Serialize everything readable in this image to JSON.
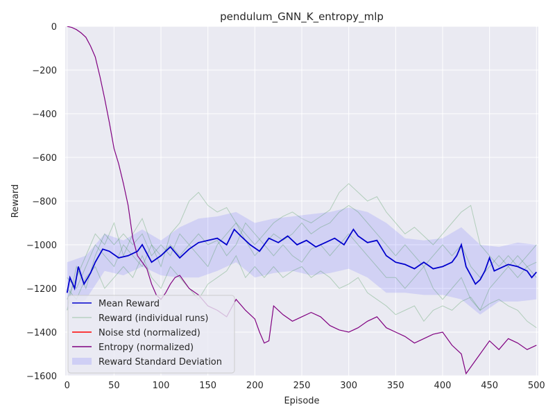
{
  "chart_data": {
    "type": "line",
    "title": "pendulum_GNN_K_entropy_mlp",
    "xlabel": "Episode",
    "ylabel": "Reward",
    "xlim": [
      -2,
      502
    ],
    "ylim": [
      -1600,
      0
    ],
    "x_ticks": [
      0,
      50,
      100,
      150,
      200,
      250,
      300,
      350,
      400,
      450,
      500
    ],
    "y_ticks": [
      0,
      -200,
      -400,
      -600,
      -800,
      -1000,
      -1200,
      -1400,
      -1600
    ],
    "x_tick_labels": [
      "0",
      "50",
      "100",
      "150",
      "200",
      "250",
      "300",
      "350",
      "400",
      "450",
      "500"
    ],
    "y_tick_labels": [
      "0",
      "−200",
      "−400",
      "−600",
      "−800",
      "−1000",
      "−1200",
      "−1400",
      "−1600"
    ],
    "grid": true,
    "legend_position": "lower-left",
    "colors": {
      "mean": "#0000cc",
      "runs": "#2e8b3c",
      "noise": "#ff0000",
      "entropy": "#800080",
      "std_band": "#6666ff",
      "background": "#eaeaf2"
    },
    "legend": [
      {
        "label": "Mean Reward",
        "kind": "line",
        "color": "#0000cc"
      },
      {
        "label": "Reward (individual runs)",
        "kind": "thin",
        "color": "#2e8b3c"
      },
      {
        "label": "Noise std (normalized)",
        "kind": "line",
        "color": "#ff0000"
      },
      {
        "label": "Entropy (normalized)",
        "kind": "line",
        "color": "#800080"
      },
      {
        "label": "Reward Standard Deviation",
        "kind": "patch",
        "color": "#6666ff"
      }
    ],
    "series": [
      {
        "name": "Mean Reward",
        "x": [
          0,
          3,
          8,
          12,
          18,
          25,
          30,
          38,
          45,
          55,
          65,
          75,
          80,
          90,
          100,
          110,
          120,
          130,
          140,
          150,
          160,
          170,
          178,
          185,
          195,
          205,
          215,
          225,
          235,
          245,
          255,
          265,
          275,
          285,
          295,
          305,
          310,
          320,
          330,
          340,
          350,
          360,
          370,
          380,
          390,
          400,
          410,
          415,
          420,
          425,
          430,
          435,
          440,
          445,
          450,
          455,
          460,
          470,
          480,
          490,
          495,
          500
        ],
        "y": [
          -1220,
          -1150,
          -1200,
          -1100,
          -1180,
          -1130,
          -1080,
          -1020,
          -1030,
          -1060,
          -1050,
          -1030,
          -1000,
          -1080,
          -1050,
          -1010,
          -1060,
          -1020,
          -990,
          -980,
          -970,
          -1000,
          -930,
          -960,
          -1000,
          -1030,
          -970,
          -990,
          -960,
          -1000,
          -980,
          -1010,
          -990,
          -970,
          -1000,
          -930,
          -960,
          -990,
          -980,
          -1050,
          -1080,
          -1090,
          -1110,
          -1080,
          -1110,
          -1100,
          -1080,
          -1050,
          -1000,
          -1100,
          -1140,
          -1180,
          -1160,
          -1120,
          -1060,
          -1120,
          -1110,
          -1090,
          -1100,
          -1120,
          -1150,
          -1125
        ]
      },
      {
        "name": "Entropy (normalized)",
        "x": [
          0,
          5,
          10,
          15,
          20,
          25,
          30,
          35,
          40,
          45,
          50,
          55,
          60,
          65,
          70,
          75,
          80,
          85,
          90,
          95,
          100,
          105,
          110,
          115,
          120,
          130,
          140,
          150,
          160,
          170,
          180,
          190,
          200,
          205,
          210,
          215,
          220,
          230,
          240,
          250,
          260,
          270,
          280,
          290,
          300,
          310,
          320,
          330,
          340,
          350,
          360,
          370,
          380,
          390,
          400,
          410,
          420,
          425,
          430,
          435,
          440,
          450,
          460,
          470,
          480,
          490,
          495,
          500
        ],
        "y": [
          0,
          -5,
          -15,
          -30,
          -50,
          -90,
          -140,
          -230,
          -330,
          -440,
          -560,
          -630,
          -720,
          -820,
          -970,
          -1050,
          -1080,
          -1110,
          -1180,
          -1230,
          -1250,
          -1220,
          -1180,
          -1150,
          -1140,
          -1200,
          -1230,
          -1280,
          -1300,
          -1330,
          -1250,
          -1300,
          -1340,
          -1400,
          -1450,
          -1440,
          -1280,
          -1320,
          -1350,
          -1330,
          -1310,
          -1330,
          -1370,
          -1390,
          -1400,
          -1380,
          -1350,
          -1330,
          -1380,
          -1400,
          -1420,
          -1450,
          -1430,
          -1410,
          -1400,
          -1460,
          -1500,
          -1590,
          -1560,
          -1530,
          -1500,
          -1440,
          -1480,
          -1430,
          -1450,
          -1480,
          -1470,
          -1460
        ]
      },
      {
        "name": "Reward (individual runs)",
        "runs": [
          {
            "x": [
              0,
              10,
              20,
              30,
              40,
              50,
              60,
              70,
              80,
              90,
              100,
              110,
              120,
              130,
              140,
              150,
              160,
              170,
              180,
              190,
              200,
              210,
              220,
              230,
              240,
              250,
              260,
              270,
              280,
              290,
              300,
              310,
              320,
              330,
              340,
              350,
              360,
              370,
              380,
              390,
              400,
              410,
              420,
              430,
              440,
              450,
              460,
              470,
              480,
              490,
              500
            ],
            "y": [
              -1250,
              -1150,
              -1050,
              -950,
              -1000,
              -900,
              -1050,
              -950,
              -880,
              -1000,
              -1100,
              -950,
              -900,
              -800,
              -760,
              -820,
              -850,
              -830,
              -900,
              -950,
              -1000,
              -950,
              -900,
              -870,
              -850,
              -880,
              -900,
              -870,
              -840,
              -760,
              -720,
              -760,
              -800,
              -780,
              -850,
              -900,
              -950,
              -920,
              -960,
              -1000,
              -950,
              -900,
              -850,
              -820,
              -1000,
              -1050,
              -1100,
              -1050,
              -1100,
              -1050,
              -1000
            ]
          },
          {
            "x": [
              0,
              10,
              20,
              30,
              40,
              50,
              60,
              70,
              80,
              90,
              100,
              110,
              120,
              130,
              140,
              150,
              160,
              170,
              180,
              190,
              200,
              210,
              220,
              230,
              240,
              250,
              260,
              270,
              280,
              290,
              300,
              310,
              320,
              330,
              340,
              350,
              360,
              370,
              380,
              390,
              400,
              410,
              420,
              430,
              440,
              450,
              460,
              470,
              480,
              490,
              500
            ],
            "y": [
              -1200,
              -1250,
              -1150,
              -1100,
              -1200,
              -1150,
              -1100,
              -1150,
              -1050,
              -1150,
              -1200,
              -1100,
              -1150,
              -1200,
              -1250,
              -1180,
              -1150,
              -1120,
              -1050,
              -1150,
              -1100,
              -1150,
              -1100,
              -1150,
              -1120,
              -1100,
              -1150,
              -1120,
              -1150,
              -1200,
              -1180,
              -1150,
              -1220,
              -1250,
              -1280,
              -1320,
              -1300,
              -1280,
              -1350,
              -1300,
              -1280,
              -1300,
              -1260,
              -1240,
              -1300,
              -1270,
              -1250,
              -1280,
              -1300,
              -1350,
              -1380
            ]
          },
          {
            "x": [
              0,
              10,
              20,
              30,
              40,
              50,
              60,
              70,
              80,
              90,
              100,
              110,
              120,
              130,
              140,
              150,
              160,
              170,
              180,
              190,
              200,
              210,
              220,
              230,
              240,
              250,
              260,
              270,
              280,
              290,
              300,
              310,
              320,
              330,
              340,
              350,
              360,
              370,
              380,
              390,
              400,
              410,
              420,
              430,
              440,
              450,
              460,
              470,
              480,
              490,
              500
            ],
            "y": [
              -1300,
              -1100,
              -1200,
              -1050,
              -950,
              -1000,
              -950,
              -1000,
              -950,
              -1050,
              -1000,
              -1050,
              -950,
              -1000,
              -950,
              -1000,
              -980,
              -1050,
              -1000,
              -900,
              -950,
              -1000,
              -950,
              -980,
              -950,
              -900,
              -950,
              -920,
              -900,
              -850,
              -820,
              -850,
              -900,
              -950,
              -1000,
              -1050,
              -1000,
              -1050,
              -1100,
              -1050,
              -1000,
              -1050,
              -1000,
              -1100,
              -1150,
              -1100,
              -1050,
              -1100,
              -1150,
              -1100,
              -1080
            ]
          },
          {
            "x": [
              0,
              10,
              20,
              30,
              40,
              50,
              60,
              70,
              80,
              90,
              100,
              110,
              120,
              130,
              140,
              150,
              160,
              170,
              180,
              190,
              200,
              210,
              220,
              230,
              240,
              250,
              260,
              270,
              280,
              290,
              300,
              310,
              320,
              330,
              340,
              350,
              360,
              370,
              380,
              390,
              400,
              410,
              420,
              430,
              440,
              450,
              460,
              470,
              480,
              490,
              500
            ],
            "y": [
              -1150,
              -1200,
              -1100,
              -1000,
              -1050,
              -1100,
              -1000,
              -1050,
              -1100,
              -1000,
              -1050,
              -1000,
              -1050,
              -1000,
              -1050,
              -1100,
              -1000,
              -950,
              -900,
              -980,
              -1050,
              -1000,
              -1050,
              -1000,
              -1050,
              -1080,
              -1020,
              -1000,
              -1050,
              -1000,
              -950,
              -1000,
              -1050,
              -1100,
              -1150,
              -1150,
              -1200,
              -1150,
              -1100,
              -1200,
              -1250,
              -1200,
              -1150,
              -1250,
              -1300,
              -1200,
              -1150,
              -1100,
              -1050,
              -1100,
              -1150
            ]
          }
        ]
      }
    ],
    "std_band": {
      "name": "Reward Standard Deviation",
      "x": [
        0,
        20,
        40,
        60,
        80,
        100,
        120,
        140,
        160,
        180,
        200,
        220,
        240,
        260,
        280,
        300,
        320,
        340,
        360,
        380,
        400,
        420,
        440,
        460,
        480,
        500
      ],
      "upper": [
        -1080,
        -1050,
        -950,
        -980,
        -930,
        -980,
        -920,
        -880,
        -870,
        -850,
        -900,
        -880,
        -870,
        -860,
        -850,
        -830,
        -850,
        -900,
        -970,
        -980,
        -970,
        -920,
        -1000,
        -1010,
        -990,
        -1000
      ],
      "lower": [
        -1300,
        -1250,
        -1120,
        -1140,
        -1100,
        -1140,
        -1150,
        -1150,
        -1120,
        -1080,
        -1150,
        -1130,
        -1120,
        -1140,
        -1130,
        -1110,
        -1150,
        -1220,
        -1220,
        -1230,
        -1230,
        -1250,
        -1320,
        -1260,
        -1260,
        -1250
      ]
    }
  }
}
